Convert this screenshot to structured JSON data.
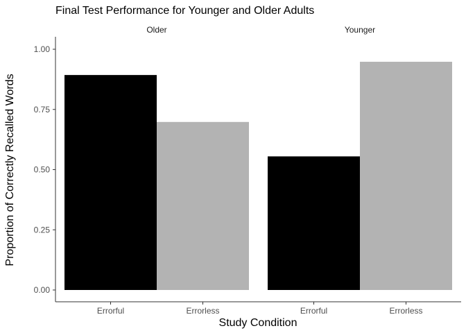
{
  "chart_data": {
    "type": "bar",
    "title": "Final Test Performance for Younger and Older Adults",
    "xlabel": "Study Condition",
    "ylabel": "Proportion of Correctly Recalled Words",
    "ylim": [
      0,
      1.0
    ],
    "yticks": [
      "0.00",
      "0.25",
      "0.50",
      "0.75",
      "1.00"
    ],
    "ytick_values": [
      0,
      0.25,
      0.5,
      0.75,
      1.0
    ],
    "grid": false,
    "panels": [
      {
        "label": "Older",
        "categories": [
          "Errorful",
          "Errorless"
        ],
        "values": [
          0.893,
          0.698
        ],
        "colors": [
          "#000000",
          "#b3b3b3"
        ]
      },
      {
        "label": "Younger",
        "categories": [
          "Errorful",
          "Errorless"
        ],
        "values": [
          0.555,
          0.948
        ],
        "colors": [
          "#000000",
          "#b3b3b3"
        ]
      }
    ]
  }
}
